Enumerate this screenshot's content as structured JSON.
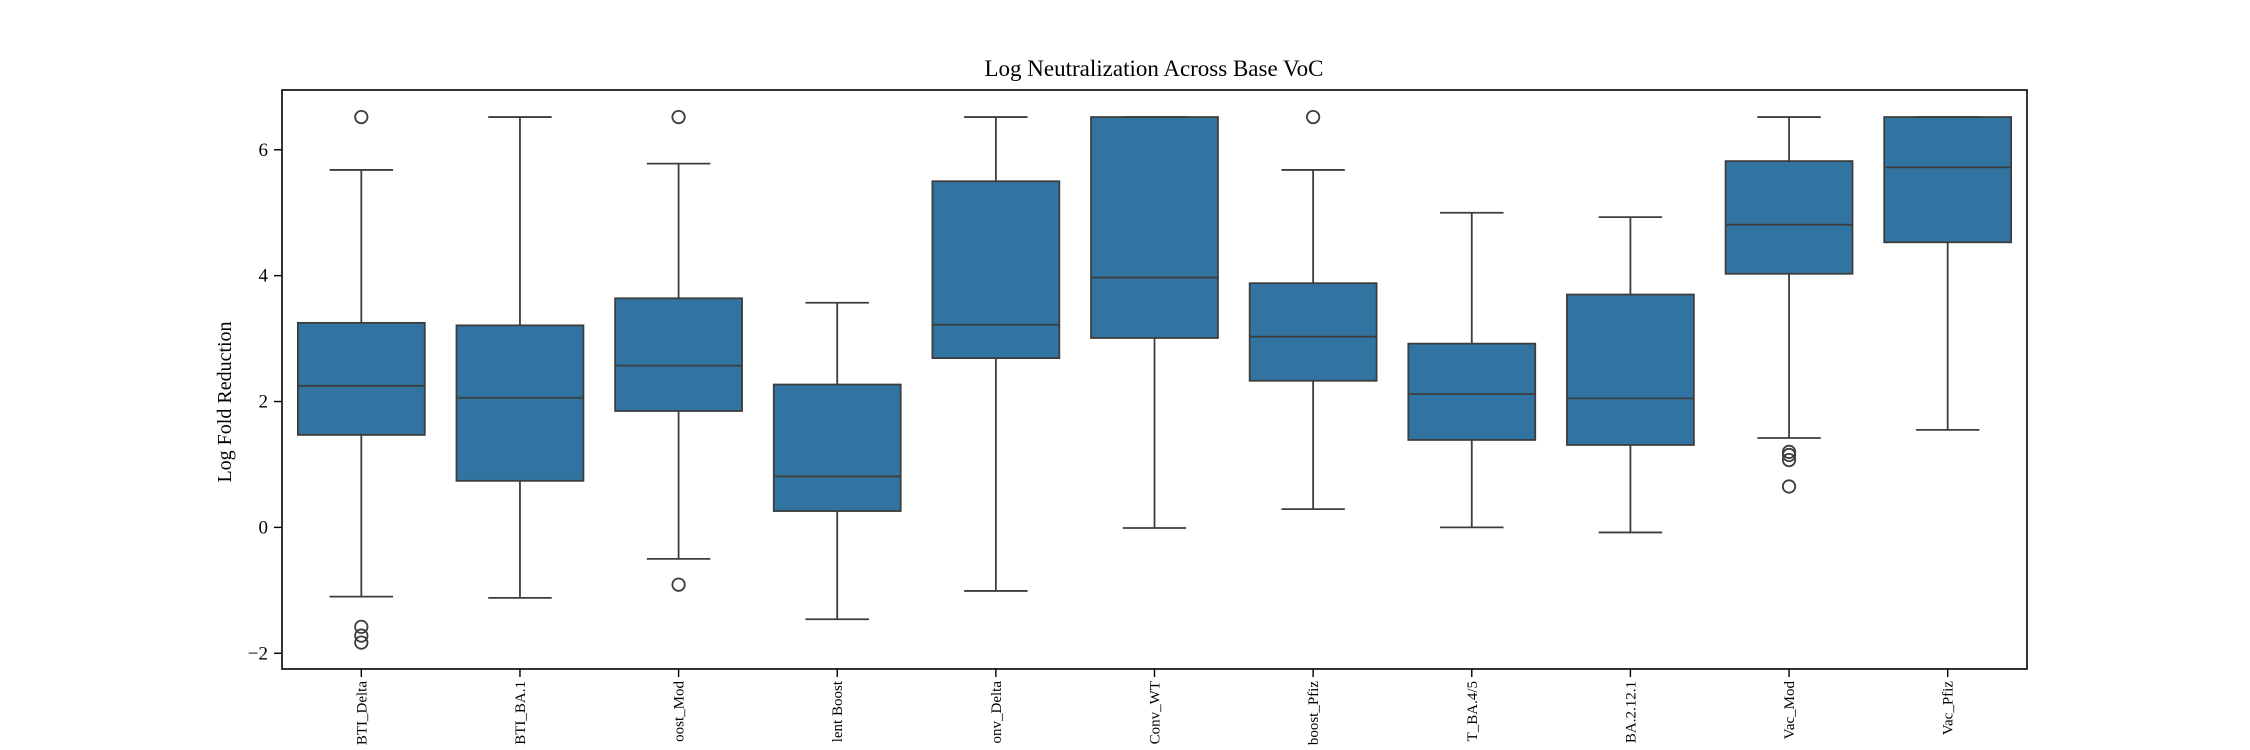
{
  "chart_data": {
    "type": "box",
    "title": "Log Neutralization Across Base VoC",
    "xlabel": "",
    "ylabel": "Log Fold Reduction",
    "ylim": [
      -2.25,
      6.95
    ],
    "yticks": [
      -2,
      0,
      2,
      4,
      6
    ],
    "ytick_labels": [
      "−2",
      "0",
      "2",
      "4",
      "6"
    ],
    "grid": false,
    "box_color": "#3274a1",
    "line_color": "#3d3d3d",
    "categories": [
      "BTI_Delta",
      "BTI_BA.1",
      "oost_Mod",
      "lent Boost",
      "onv_Delta",
      "Conv_WT",
      "boost_Pfiz",
      "T_BA.4/5",
      "BA.2.12.1",
      "Vac_Mod",
      "Vac_Pfiz"
    ],
    "boxes": [
      {
        "whislo": -1.1,
        "q1": 1.47,
        "med": 2.25,
        "q3": 3.25,
        "whishi": 5.68,
        "fliers": [
          6.52,
          -1.58,
          -1.72,
          -1.83
        ]
      },
      {
        "whislo": -1.12,
        "q1": 0.74,
        "med": 2.06,
        "q3": 3.21,
        "whishi": 6.52,
        "fliers": []
      },
      {
        "whislo": -0.5,
        "q1": 1.85,
        "med": 2.57,
        "q3": 3.64,
        "whishi": 5.78,
        "fliers": [
          6.52,
          -0.91
        ]
      },
      {
        "whislo": -1.46,
        "q1": 0.26,
        "med": 0.81,
        "q3": 2.27,
        "whishi": 3.57,
        "fliers": []
      },
      {
        "whislo": -1.01,
        "q1": 2.69,
        "med": 3.22,
        "q3": 5.5,
        "whishi": 6.52,
        "fliers": []
      },
      {
        "whislo": -0.01,
        "q1": 3.01,
        "med": 3.97,
        "q3": 6.52,
        "whishi": 6.52,
        "fliers": []
      },
      {
        "whislo": 0.29,
        "q1": 2.33,
        "med": 3.03,
        "q3": 3.88,
        "whishi": 5.68,
        "fliers": [
          6.52
        ]
      },
      {
        "whislo": 0.0,
        "q1": 1.39,
        "med": 2.12,
        "q3": 2.92,
        "whishi": 5.0,
        "fliers": []
      },
      {
        "whislo": -0.08,
        "q1": 1.31,
        "med": 2.05,
        "q3": 3.7,
        "whishi": 4.93,
        "fliers": []
      },
      {
        "whislo": 1.42,
        "q1": 4.03,
        "med": 4.81,
        "q3": 5.82,
        "whishi": 6.52,
        "fliers": [
          1.2,
          1.15,
          1.07,
          0.65
        ]
      },
      {
        "whislo": 1.55,
        "q1": 4.53,
        "med": 5.72,
        "q3": 6.52,
        "whishi": 6.52,
        "fliers": []
      }
    ]
  }
}
